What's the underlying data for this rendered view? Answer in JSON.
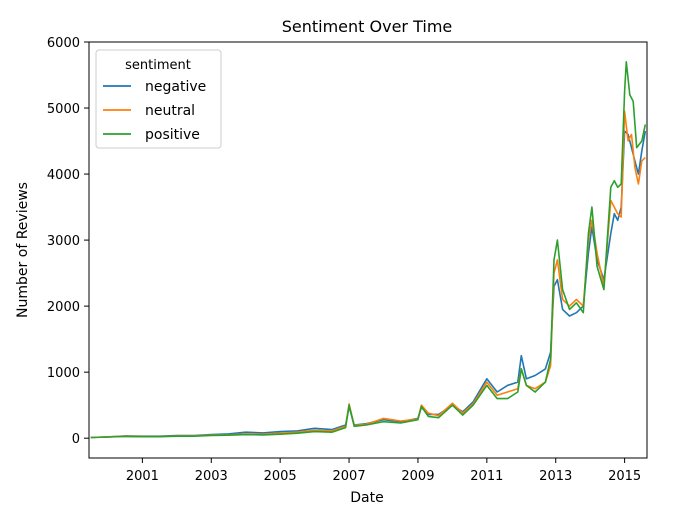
{
  "chart_data": {
    "type": "line",
    "title": "Sentiment Over Time",
    "xlabel": "Date",
    "ylabel": "Number of Reviews",
    "xlim": [
      1999.45,
      2015.65
    ],
    "ylim": [
      -300,
      6000
    ],
    "x_ticks": [
      2001,
      2003,
      2005,
      2007,
      2009,
      2011,
      2013,
      2015
    ],
    "x_tick_labels": [
      "2001",
      "2003",
      "2005",
      "2007",
      "2009",
      "2011",
      "2013",
      "2015"
    ],
    "y_ticks": [
      0,
      1000,
      2000,
      3000,
      4000,
      5000,
      6000
    ],
    "y_tick_labels": [
      "0",
      "1000",
      "2000",
      "3000",
      "4000",
      "5000",
      "6000"
    ],
    "grid": false,
    "legend": {
      "title": "sentiment",
      "placement": "top-left"
    },
    "series": [
      {
        "name": "negative",
        "color": "#1f77b4",
        "points": [
          [
            1999.5,
            10
          ],
          [
            2000.0,
            20
          ],
          [
            2000.5,
            35
          ],
          [
            2001.0,
            30
          ],
          [
            2001.5,
            30
          ],
          [
            2002.0,
            40
          ],
          [
            2002.5,
            40
          ],
          [
            2003.0,
            55
          ],
          [
            2003.5,
            65
          ],
          [
            2004.0,
            90
          ],
          [
            2004.5,
            80
          ],
          [
            2005.0,
            100
          ],
          [
            2005.5,
            110
          ],
          [
            2006.0,
            150
          ],
          [
            2006.5,
            130
          ],
          [
            2006.9,
            200
          ],
          [
            2007.0,
            480
          ],
          [
            2007.15,
            200
          ],
          [
            2007.5,
            220
          ],
          [
            2008.0,
            280
          ],
          [
            2008.5,
            250
          ],
          [
            2009.0,
            300
          ],
          [
            2009.1,
            470
          ],
          [
            2009.3,
            360
          ],
          [
            2009.6,
            360
          ],
          [
            2010.0,
            500
          ],
          [
            2010.3,
            400
          ],
          [
            2010.6,
            550
          ],
          [
            2011.0,
            900
          ],
          [
            2011.3,
            700
          ],
          [
            2011.6,
            800
          ],
          [
            2011.9,
            850
          ],
          [
            2012.0,
            1250
          ],
          [
            2012.15,
            900
          ],
          [
            2012.4,
            950
          ],
          [
            2012.7,
            1050
          ],
          [
            2012.85,
            1300
          ],
          [
            2012.95,
            2300
          ],
          [
            2013.05,
            2400
          ],
          [
            2013.2,
            1950
          ],
          [
            2013.4,
            1850
          ],
          [
            2013.6,
            1900
          ],
          [
            2013.8,
            2000
          ],
          [
            2013.95,
            2800
          ],
          [
            2014.05,
            3200
          ],
          [
            2014.2,
            2700
          ],
          [
            2014.4,
            2400
          ],
          [
            2014.6,
            3100
          ],
          [
            2014.7,
            3400
          ],
          [
            2014.8,
            3300
          ],
          [
            2014.9,
            3500
          ],
          [
            2015.0,
            4650
          ],
          [
            2015.1,
            4600
          ],
          [
            2015.2,
            4400
          ],
          [
            2015.3,
            4200
          ],
          [
            2015.4,
            4000
          ],
          [
            2015.5,
            4350
          ],
          [
            2015.6,
            4650
          ]
        ]
      },
      {
        "name": "neutral",
        "color": "#ff7f0e",
        "points": [
          [
            1999.5,
            10
          ],
          [
            2000.0,
            20
          ],
          [
            2000.5,
            30
          ],
          [
            2001.0,
            25
          ],
          [
            2001.5,
            25
          ],
          [
            2002.0,
            35
          ],
          [
            2002.5,
            35
          ],
          [
            2003.0,
            45
          ],
          [
            2003.5,
            50
          ],
          [
            2004.0,
            65
          ],
          [
            2004.5,
            60
          ],
          [
            2005.0,
            75
          ],
          [
            2005.5,
            90
          ],
          [
            2006.0,
            120
          ],
          [
            2006.5,
            110
          ],
          [
            2006.9,
            180
          ],
          [
            2007.0,
            520
          ],
          [
            2007.15,
            190
          ],
          [
            2007.5,
            210
          ],
          [
            2008.0,
            300
          ],
          [
            2008.5,
            260
          ],
          [
            2009.0,
            290
          ],
          [
            2009.1,
            500
          ],
          [
            2009.3,
            380
          ],
          [
            2009.6,
            340
          ],
          [
            2010.0,
            530
          ],
          [
            2010.3,
            380
          ],
          [
            2010.6,
            520
          ],
          [
            2011.0,
            850
          ],
          [
            2011.3,
            650
          ],
          [
            2011.6,
            700
          ],
          [
            2011.9,
            750
          ],
          [
            2012.0,
            1050
          ],
          [
            2012.15,
            800
          ],
          [
            2012.4,
            750
          ],
          [
            2012.7,
            850
          ],
          [
            2012.85,
            1100
          ],
          [
            2012.95,
            2500
          ],
          [
            2013.05,
            2700
          ],
          [
            2013.2,
            2100
          ],
          [
            2013.4,
            2000
          ],
          [
            2013.6,
            2100
          ],
          [
            2013.8,
            2000
          ],
          [
            2013.95,
            3000
          ],
          [
            2014.05,
            3300
          ],
          [
            2014.2,
            2800
          ],
          [
            2014.4,
            2300
          ],
          [
            2014.6,
            3600
          ],
          [
            2014.7,
            3500
          ],
          [
            2014.8,
            3400
          ],
          [
            2014.9,
            3350
          ],
          [
            2015.0,
            4950
          ],
          [
            2015.1,
            4500
          ],
          [
            2015.2,
            4600
          ],
          [
            2015.3,
            4100
          ],
          [
            2015.4,
            3850
          ],
          [
            2015.5,
            4200
          ],
          [
            2015.6,
            4250
          ]
        ]
      },
      {
        "name": "positive",
        "color": "#2ca02c",
        "points": [
          [
            1999.5,
            10
          ],
          [
            2000.0,
            18
          ],
          [
            2000.5,
            25
          ],
          [
            2001.0,
            22
          ],
          [
            2001.5,
            22
          ],
          [
            2002.0,
            30
          ],
          [
            2002.5,
            30
          ],
          [
            2003.0,
            40
          ],
          [
            2003.5,
            45
          ],
          [
            2004.0,
            55
          ],
          [
            2004.5,
            50
          ],
          [
            2005.0,
            60
          ],
          [
            2005.5,
            75
          ],
          [
            2006.0,
            100
          ],
          [
            2006.5,
            90
          ],
          [
            2006.9,
            160
          ],
          [
            2007.0,
            500
          ],
          [
            2007.15,
            180
          ],
          [
            2007.5,
            200
          ],
          [
            2008.0,
            250
          ],
          [
            2008.5,
            230
          ],
          [
            2009.0,
            280
          ],
          [
            2009.1,
            480
          ],
          [
            2009.3,
            330
          ],
          [
            2009.6,
            310
          ],
          [
            2010.0,
            500
          ],
          [
            2010.3,
            350
          ],
          [
            2010.6,
            500
          ],
          [
            2011.0,
            800
          ],
          [
            2011.3,
            600
          ],
          [
            2011.6,
            600
          ],
          [
            2011.9,
            700
          ],
          [
            2012.0,
            1050
          ],
          [
            2012.15,
            800
          ],
          [
            2012.4,
            700
          ],
          [
            2012.7,
            850
          ],
          [
            2012.85,
            1200
          ],
          [
            2012.95,
            2700
          ],
          [
            2013.05,
            3000
          ],
          [
            2013.2,
            2250
          ],
          [
            2013.4,
            1950
          ],
          [
            2013.6,
            2050
          ],
          [
            2013.8,
            1900
          ],
          [
            2013.95,
            3100
          ],
          [
            2014.05,
            3500
          ],
          [
            2014.2,
            2600
          ],
          [
            2014.4,
            2250
          ],
          [
            2014.6,
            3800
          ],
          [
            2014.7,
            3900
          ],
          [
            2014.8,
            3800
          ],
          [
            2014.9,
            3850
          ],
          [
            2015.0,
            5250
          ],
          [
            2015.05,
            5700
          ],
          [
            2015.15,
            5200
          ],
          [
            2015.25,
            5100
          ],
          [
            2015.35,
            4400
          ],
          [
            2015.5,
            4500
          ],
          [
            2015.6,
            4750
          ]
        ]
      }
    ]
  }
}
